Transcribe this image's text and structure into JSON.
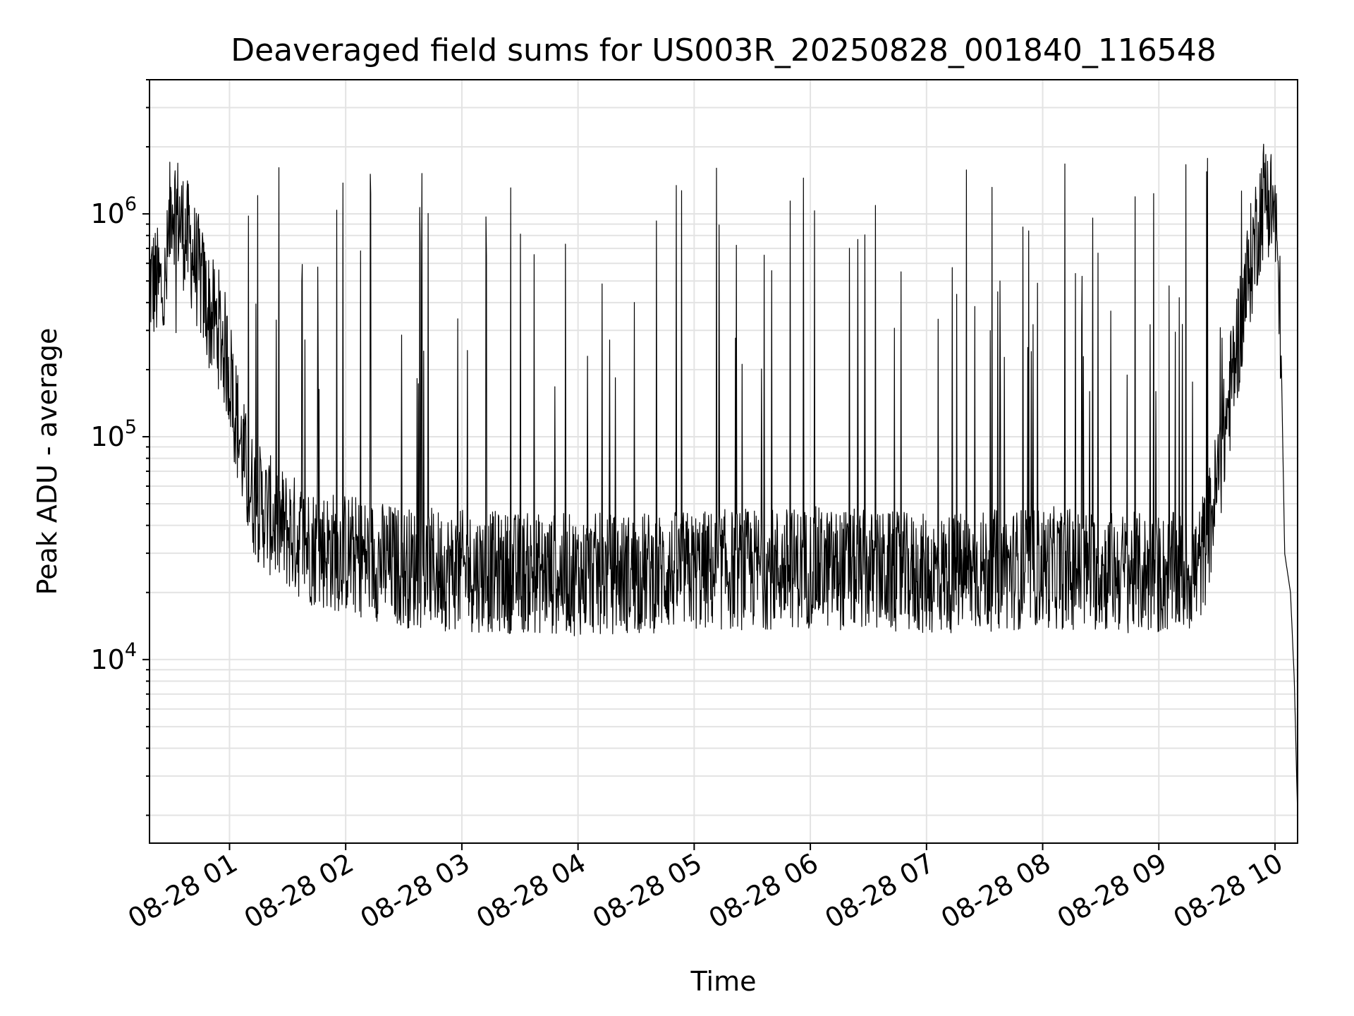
{
  "chart_data": {
    "type": "line",
    "title": "Deaveraged field sums for US003R_20250828_001840_116548",
    "xlabel": "Time",
    "ylabel": "Peak ADU - average",
    "yscale": "log",
    "ylim": [
      1500,
      4000000
    ],
    "xlim": [
      "08-28 00:18:40",
      "08-28 10:11:40"
    ],
    "grid": true,
    "x_ticks": [
      "08-28 01",
      "08-28 02",
      "08-28 03",
      "08-28 04",
      "08-28 05",
      "08-28 06",
      "08-28 07",
      "08-28 08",
      "08-28 09",
      "08-28 10"
    ],
    "y_ticks": [
      {
        "base": "10",
        "exp": "4",
        "value": 10000
      },
      {
        "base": "10",
        "exp": "5",
        "value": 100000
      },
      {
        "base": "10",
        "exp": "6",
        "value": 1000000
      }
    ],
    "series": [
      {
        "color": "#000000",
        "x": [
          "08-28 00:18:40",
          "08-28 00:27:00",
          "08-28 00:30:00",
          "08-28 00:35:00",
          "08-28 00:40:00",
          "08-28 00:45:00",
          "08-28 00:50:00",
          "08-28 00:55:00",
          "08-28 01:00:00",
          "08-28 01:05:00",
          "08-28 01:10:00",
          "08-28 01:15:00",
          "08-28 01:20:00",
          "08-28 01:25:00",
          "08-28 01:30:00",
          "08-28 01:40:00",
          "08-28 01:50:00",
          "08-28 02:00:00",
          "08-28 02:15:00",
          "08-28 02:30:00",
          "08-28 03:00:00",
          "08-28 04:00:00",
          "08-28 05:00:00",
          "08-28 06:00:00",
          "08-28 07:00:00",
          "08-28 07:30:00",
          "08-28 08:00:00",
          "08-28 08:30:00",
          "08-28 09:00:00",
          "08-28 09:20:00",
          "08-28 09:25:00",
          "08-28 09:30:00",
          "08-28 09:35:00",
          "08-28 09:40:00",
          "08-28 09:45:00",
          "08-28 09:50:00",
          "08-28 09:55:00",
          "08-28 10:00:00",
          "08-28 10:03:00",
          "08-28 10:05:00",
          "08-28 10:08:00",
          "08-28 10:10:00",
          "08-28 10:11:40"
        ],
        "y": [
          500000,
          450000,
          1200000,
          900000,
          700000,
          500000,
          350000,
          300000,
          200000,
          100000,
          60000,
          50000,
          45000,
          40000,
          38000,
          33000,
          31000,
          30000,
          28000,
          26000,
          25000,
          24000,
          25000,
          26000,
          24000,
          25000,
          26000,
          25000,
          24000,
          25000,
          35000,
          60000,
          120000,
          250000,
          450000,
          800000,
          1300000,
          1000000,
          300000,
          30000,
          20000,
          8000,
          2000
        ]
      }
    ]
  }
}
